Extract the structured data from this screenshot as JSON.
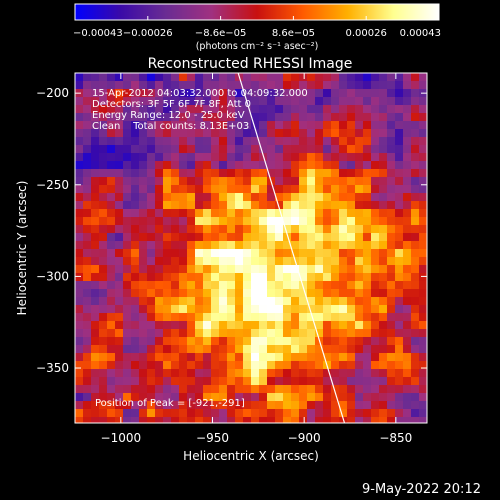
{
  "colorbar": {
    "tick_values": [
      "-0.00043",
      "-0.00026",
      "-8.6e-05",
      "8.6e-05",
      "0.00026",
      "0.00043"
    ],
    "units_text": "(photons cm⁻² s⁻¹ asec⁻²)",
    "colors": [
      "#0000ff",
      "#3a0aa8",
      "#6a2c93",
      "#a03080",
      "#c81010",
      "#ff5a00",
      "#ffb000",
      "#ffff90",
      "#ffffff"
    ]
  },
  "annotations": {
    "time_range": "15-Apr-2012 04:03:32.000 to 04:09:32.000",
    "detectors": "Detectors: 3F 5F 6F 7F 8F, Att 0",
    "energy_range": "Energy Range: 12.0 - 25.0 keV",
    "clean": "Clean    Total counts: 8.13E+03",
    "peak_position": "Position of Peak = [-921,-291]"
  },
  "footer": {
    "date": "9-May-2022 20:12"
  },
  "chart_data": {
    "type": "heatmap",
    "title": "Reconstructed RHESSI Image",
    "xlabel": "Heliocentric X (arcsec)",
    "ylabel": "Heliocentric Y (arcsec)",
    "xlim": [
      -1025,
      -833
    ],
    "ylim": [
      -380,
      -189
    ],
    "xticks": [
      -1000,
      -950,
      -900,
      -850
    ],
    "yticks": [
      -200,
      -250,
      -300,
      -350
    ],
    "xtick_labels": [
      "−1000",
      "−950",
      "−900",
      "−850"
    ],
    "ytick_labels": [
      "−200",
      "−250",
      "−300",
      "−350"
    ],
    "value_range": [
      -0.00043,
      0.00043
    ],
    "peak": [
      -921,
      -291
    ],
    "limb_line": [
      [
        -936,
        -189
      ],
      [
        -878,
        -380
      ]
    ],
    "grid": false
  }
}
